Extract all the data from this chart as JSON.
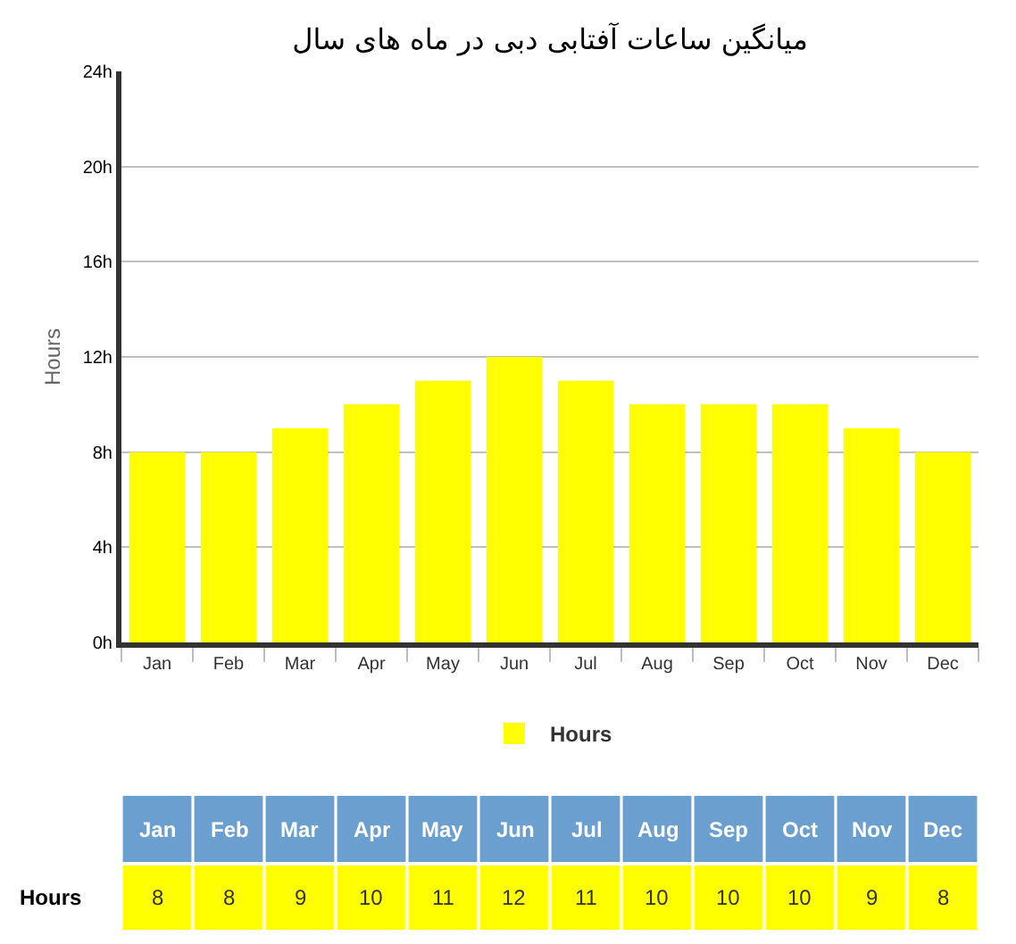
{
  "chart_data": {
    "type": "bar",
    "title": "میانگین ساعات آفتابی دبی در ماه های سال",
    "ylabel": "Hours",
    "categories": [
      "Jan",
      "Feb",
      "Mar",
      "Apr",
      "May",
      "Jun",
      "Jul",
      "Aug",
      "Sep",
      "Oct",
      "Nov",
      "Dec"
    ],
    "series": [
      {
        "name": "Hours",
        "color": "#ffff00",
        "values": [
          8,
          8,
          9,
          10,
          11,
          12,
          11,
          10,
          10,
          10,
          9,
          8
        ]
      }
    ],
    "ylim": [
      0,
      24
    ],
    "yticks": [
      {
        "value": 0,
        "label": "0h"
      },
      {
        "value": 4,
        "label": "4h"
      },
      {
        "value": 8,
        "label": "8h"
      },
      {
        "value": 12,
        "label": "12h"
      },
      {
        "value": 16,
        "label": "16h"
      },
      {
        "value": 20,
        "label": "20h"
      },
      {
        "value": 24,
        "label": "24h"
      }
    ],
    "grid": "y",
    "legend": "bottom",
    "data_labels": true
  }
}
